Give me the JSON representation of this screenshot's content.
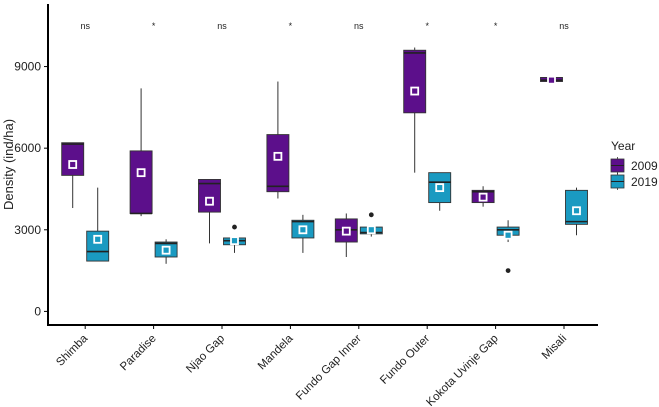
{
  "chart_data": {
    "type": "boxplot",
    "title": "",
    "xlabel": "",
    "ylabel": "Density (ind/ha)",
    "ylim": [
      -500,
      11300
    ],
    "yticks": [
      0,
      3000,
      6000,
      9000
    ],
    "yticklabels": [
      "0",
      "3000",
      "6000",
      "9000"
    ],
    "categories": [
      "Shimba",
      "Paradise",
      "Njao Gap",
      "Mandela",
      "Fundo Gap Inner",
      "Fundo Outer",
      "Kokota Uvinje Gap",
      "Misali"
    ],
    "significance": [
      "ns",
      "*",
      "ns",
      "*",
      "ns",
      "*",
      "*",
      "ns"
    ],
    "legend": {
      "title": "Year",
      "position": "right",
      "entries": [
        {
          "name": "2009",
          "color": "#5c0f8b"
        },
        {
          "name": "2019",
          "color": "#1a9ac1"
        }
      ]
    },
    "series": [
      {
        "name": "2009",
        "color": "#5c0f8b",
        "boxes": [
          {
            "category": "Shimba",
            "whisker_low": 3800,
            "q1": 5000,
            "median": 6150,
            "q3": 6200,
            "whisker_high": 6200,
            "mean": 5400,
            "outliers": []
          },
          {
            "category": "Paradise",
            "whisker_low": 3500,
            "q1": 3600,
            "median": 3600,
            "q3": 5900,
            "whisker_high": 8200,
            "mean": 5100,
            "outliers": []
          },
          {
            "category": "Njao Gap",
            "whisker_low": 2500,
            "q1": 3650,
            "median": 4700,
            "q3": 4850,
            "whisker_high": 4850,
            "mean": 4050,
            "outliers": []
          },
          {
            "category": "Mandela",
            "whisker_low": 4150,
            "q1": 4400,
            "median": 4600,
            "q3": 6500,
            "whisker_high": 8450,
            "mean": 5700,
            "outliers": []
          },
          {
            "category": "Fundo Gap Inner",
            "whisker_low": 2000,
            "q1": 2550,
            "median": 3000,
            "q3": 3400,
            "whisker_high": 3600,
            "mean": 2950,
            "outliers": []
          },
          {
            "category": "Fundo Outer",
            "whisker_low": 5100,
            "q1": 7300,
            "median": 9500,
            "q3": 9600,
            "whisker_high": 9700,
            "mean": 8100,
            "outliers": []
          },
          {
            "category": "Kokota Uvinje Gap",
            "whisker_low": 3850,
            "q1": 4000,
            "median": 4400,
            "q3": 4450,
            "whisker_high": 4600,
            "mean": 4200,
            "outliers": []
          },
          {
            "category": "Misali",
            "whisker_low": 8450,
            "q1": 8450,
            "median": 8500,
            "q3": 8600,
            "whisker_high": 8600,
            "mean": 8500,
            "outliers": []
          }
        ]
      },
      {
        "name": "2019",
        "color": "#1a9ac1",
        "boxes": [
          {
            "category": "Shimba",
            "whisker_low": 1850,
            "q1": 1850,
            "median": 2200,
            "q3": 2950,
            "whisker_high": 4550,
            "mean": 2650,
            "outliers": []
          },
          {
            "category": "Paradise",
            "whisker_low": 1750,
            "q1": 2000,
            "median": 2500,
            "q3": 2550,
            "whisker_high": 2650,
            "mean": 2250,
            "outliers": []
          },
          {
            "category": "Njao Gap",
            "whisker_low": 2150,
            "q1": 2450,
            "median": 2600,
            "q3": 2700,
            "whisker_high": 2750,
            "mean": 2600,
            "outliers": [
              3100
            ]
          },
          {
            "category": "Mandela",
            "whisker_low": 2150,
            "q1": 2700,
            "median": 3300,
            "q3": 3350,
            "whisker_high": 3550,
            "mean": 3000,
            "outliers": []
          },
          {
            "category": "Fundo Gap Inner",
            "whisker_low": 2750,
            "q1": 2850,
            "median": 2900,
            "q3": 3100,
            "whisker_high": 3150,
            "mean": 3000,
            "outliers": [
              3550
            ]
          },
          {
            "category": "Fundo Outer",
            "whisker_low": 3700,
            "q1": 4000,
            "median": 4750,
            "q3": 5100,
            "whisker_high": 5100,
            "mean": 4550,
            "outliers": []
          },
          {
            "category": "Kokota Uvinje Gap",
            "whisker_low": 2550,
            "q1": 2800,
            "median": 3000,
            "q3": 3100,
            "whisker_high": 3350,
            "mean": 2800,
            "outliers": [
              1500
            ]
          },
          {
            "category": "Misali",
            "whisker_low": 2800,
            "q1": 3200,
            "median": 3300,
            "q3": 4450,
            "whisker_high": 4550,
            "mean": 3700,
            "outliers": []
          }
        ]
      }
    ]
  }
}
